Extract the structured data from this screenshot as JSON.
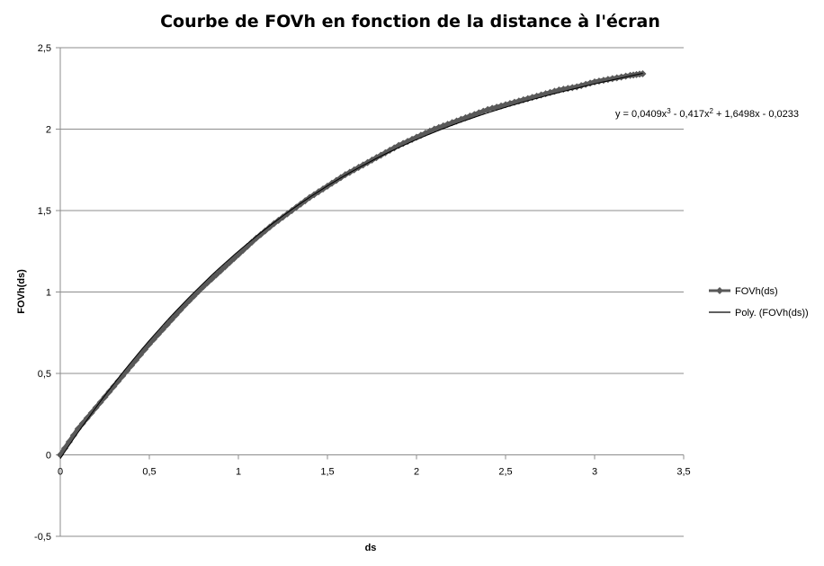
{
  "chart_data": {
    "type": "line",
    "title": "Courbe de FOVh en fonction de la distance à l'écran",
    "xlabel": "ds",
    "ylabel": "FOVh(ds)",
    "xlim": [
      0,
      3.5
    ],
    "ylim": [
      -0.5,
      2.5
    ],
    "x_ticks": [
      "0",
      "0,5",
      "1",
      "1,5",
      "2",
      "2,5",
      "3",
      "3,5"
    ],
    "x_tick_values": [
      0,
      0.5,
      1,
      1.5,
      2,
      2.5,
      3,
      3.5
    ],
    "y_ticks": [
      "-0,5",
      "0",
      "0,5",
      "1",
      "1,5",
      "2",
      "2,5"
    ],
    "y_tick_values": [
      -0.5,
      0,
      0.5,
      1,
      1.5,
      2,
      2.5
    ],
    "grid": true,
    "legend_position": "right",
    "series": [
      {
        "name": "FOVh(ds)",
        "marker": "diamond",
        "color": "#595959",
        "x": [
          0,
          0.1,
          0.2,
          0.3,
          0.4,
          0.5,
          0.6,
          0.7,
          0.8,
          0.9,
          1.0,
          1.1,
          1.2,
          1.3,
          1.4,
          1.5,
          1.6,
          1.7,
          1.8,
          1.9,
          2.0,
          2.1,
          2.2,
          2.3,
          2.4,
          2.5,
          2.6,
          2.7,
          2.8,
          2.9,
          3.0,
          3.1,
          3.2,
          3.27
        ],
        "y": [
          0.0,
          0.16,
          0.29,
          0.42,
          0.55,
          0.68,
          0.8,
          0.92,
          1.03,
          1.13,
          1.23,
          1.33,
          1.42,
          1.5,
          1.58,
          1.65,
          1.72,
          1.78,
          1.84,
          1.9,
          1.95,
          2.0,
          2.04,
          2.08,
          2.12,
          2.15,
          2.18,
          2.21,
          2.24,
          2.26,
          2.29,
          2.31,
          2.33,
          2.34
        ]
      },
      {
        "name": "Poly. (FOVh(ds))",
        "color": "#000000",
        "type": "trendline",
        "coefficients": [
          0.0409,
          -0.417,
          1.6498,
          -0.0233
        ]
      }
    ],
    "annotations": {
      "equation": "y = 0,0409x³ - 0,417x² + 1,6498x - 0,0233"
    }
  }
}
